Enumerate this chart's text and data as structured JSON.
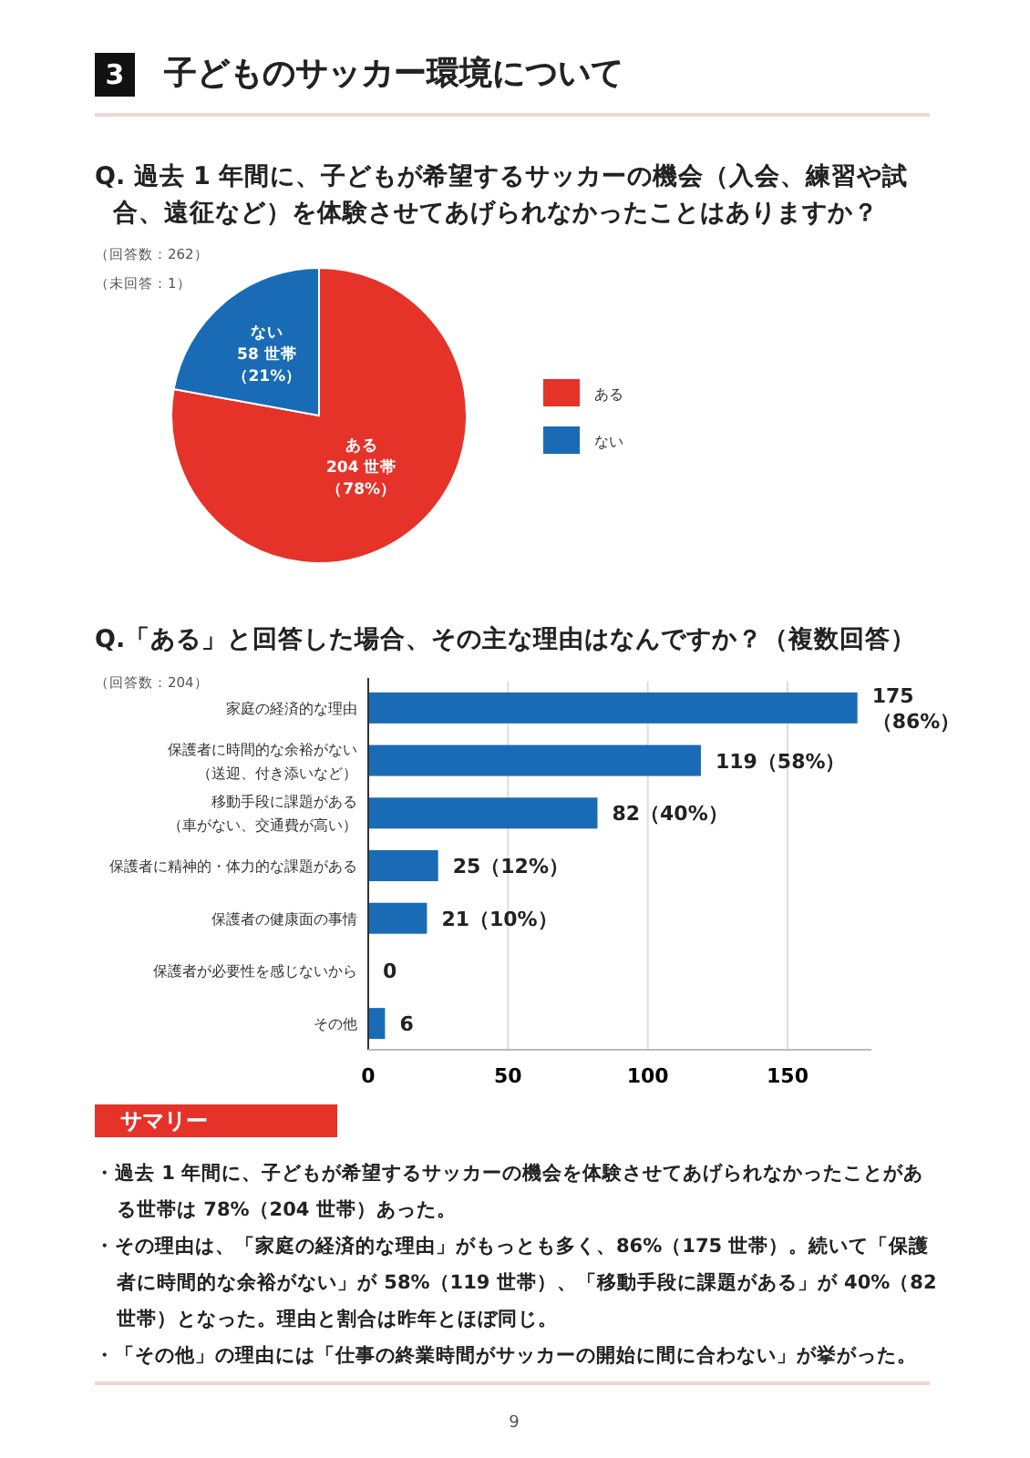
{
  "chart_data": [
    {
      "type": "other",
      "title": "子どものサッカー環境について",
      "annotations": [
        "3"
      ]
    },
    {
      "type": "pie",
      "title": "Q. 過去 1 年間に、子どもが希望するサッカーの機会（入会、練習や試合、遠征など）を体験させてあげられなかったことはありますか？",
      "annotations": [
        "（回答数：262）",
        "（未回答：1）"
      ],
      "categories": [
        "ある",
        "ない"
      ],
      "values": [
        204,
        58
      ],
      "colors": [
        "#e5332a",
        "#1a6bb5"
      ],
      "value_labels": [
        "204 世帯（78%）",
        "58 世帯（21%）"
      ],
      "legend": "right"
    },
    {
      "type": "bar",
      "orientation": "horizontal",
      "title": "Q.「ある」と回答した場合、その主な理由はなんですか？（複数回答）",
      "annotations": [
        "（回答数：204）"
      ],
      "categories": [
        "家庭の経済的な理由",
        "保護者に時間的な余裕がない（送迎、付き添いなど）",
        "移動手段に課題がある（車がない、交通費が高い）",
        "保護者に精神的・体力的な課題がある",
        "保護者の健康面の事情",
        "保護者が必要性を感じないから",
        "その他"
      ],
      "values": [
        175,
        119,
        82,
        25,
        21,
        0,
        6
      ],
      "color": "#1a6bb5",
      "value_labels": [
        "175（86%）",
        "119（58%）",
        "82（40%）",
        "25（12%）",
        "21（10%）",
        "0",
        "6"
      ],
      "xlim": [
        0,
        180
      ],
      "xticks": [
        0,
        50,
        100,
        150
      ],
      "grid": "x"
    },
    {
      "type": "other",
      "title": "サマリー",
      "annotations": [
        "・過去 1 年間に、子どもが希望するサッカーの機会を体験させてあげられなかったことがある世帯は 78%（204 世帯）あった。",
        "・その理由は、「家庭の経済的な理由」がもっとも多く、86%（175 世帯）。続いて「保護者に時間的な余裕がない」が 58%（119 世帯）、「移動手段に課題がある」が 40%（82 世帯）となった。理由と割合は昨年とほぼ同じ。",
        "・「その他」の理由には「仕事の終業時間がサッカーの開始に間に合わない」が挙がった。",
        "9"
      ]
    }
  ]
}
